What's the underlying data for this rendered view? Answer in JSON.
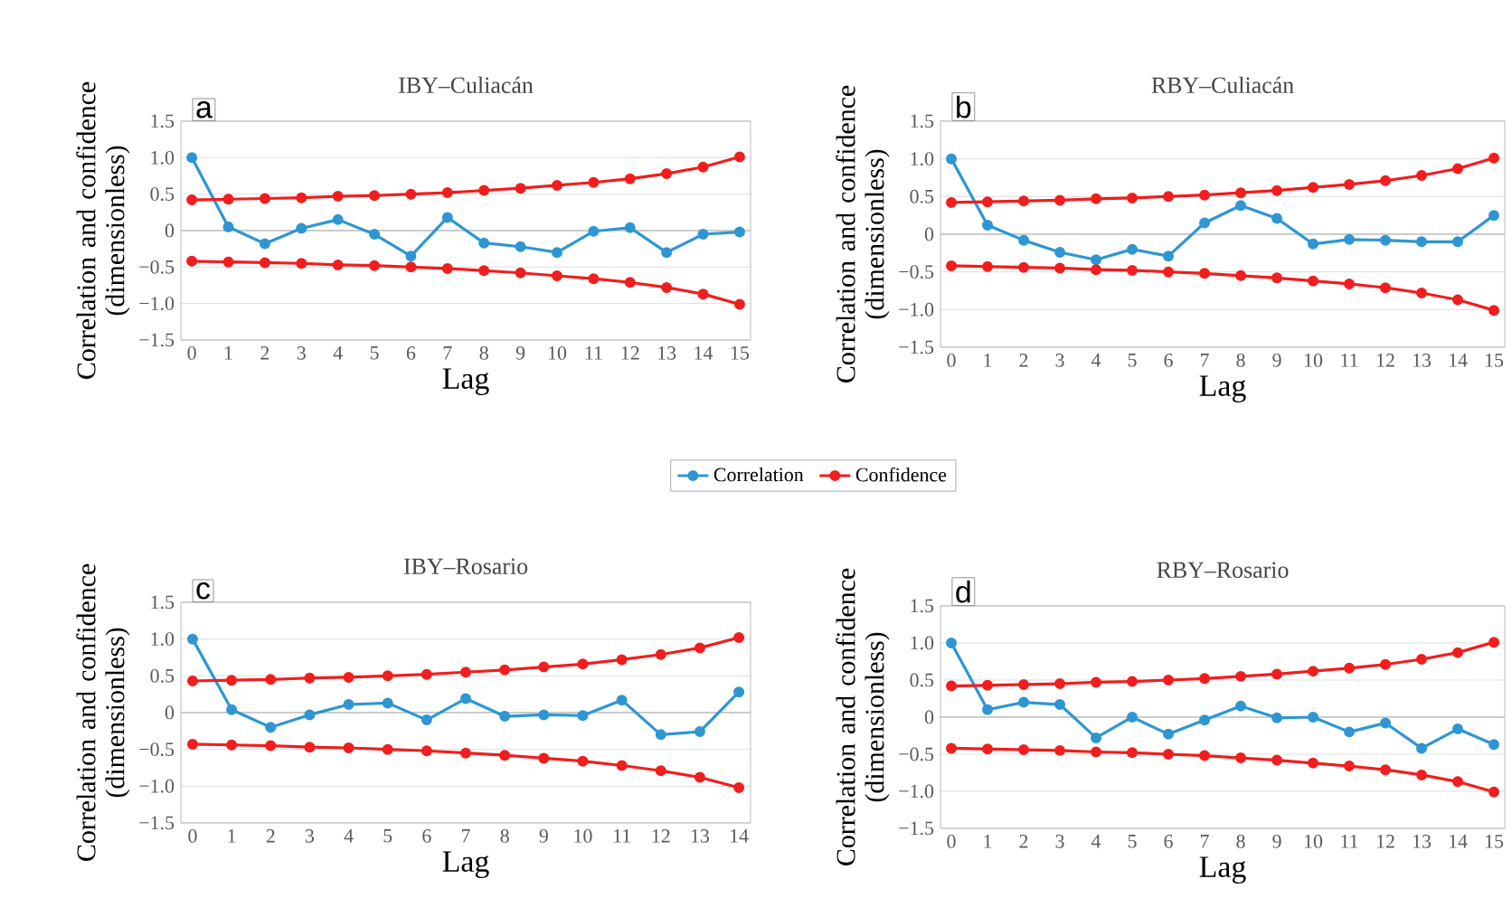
{
  "chart_data": [
    {
      "type": "line",
      "title": "IBY–Culiacán",
      "xlabel": "Lag",
      "ylabel": "Correlation and confidence (dimensionless)",
      "annotations": [
        "a"
      ],
      "categories": [
        "0",
        "1",
        "2",
        "3",
        "4",
        "5",
        "6",
        "7",
        "8",
        "9",
        "10",
        "11",
        "12",
        "13",
        "14",
        "15"
      ],
      "series": [
        {
          "name": "Correlation",
          "color": "#2e96d2",
          "values": [
            1.0,
            0.05,
            -0.18,
            0.03,
            0.15,
            -0.05,
            -0.35,
            0.18,
            -0.17,
            -0.22,
            -0.3,
            -0.01,
            0.04,
            -0.3,
            -0.05,
            -0.02
          ]
        },
        {
          "name": "Confidence",
          "color": "#f01e1e",
          "values": [
            0.42,
            0.43,
            0.44,
            0.45,
            0.47,
            0.48,
            0.5,
            0.52,
            0.55,
            0.58,
            0.62,
            0.66,
            0.71,
            0.78,
            0.87,
            1.01
          ]
        },
        {
          "color": "#f01e1e",
          "values": [
            -0.42,
            -0.43,
            -0.44,
            -0.45,
            -0.47,
            -0.48,
            -0.5,
            -0.52,
            -0.55,
            -0.58,
            -0.62,
            -0.66,
            -0.71,
            -0.78,
            -0.87,
            -1.01
          ]
        }
      ],
      "ylim": [
        -1.5,
        1.5
      ],
      "yticks": [
        {
          "value": -1.5,
          "label": "−1.5"
        },
        {
          "value": -1,
          "label": "−1.0"
        },
        {
          "value": -0.5,
          "label": "−0.5"
        },
        0,
        {
          "value": 0.5,
          "label": "0.5"
        },
        {
          "value": 1,
          "label": "1.0"
        },
        {
          "value": 1.5,
          "label": "1.5"
        }
      ],
      "grid": "y",
      "marker": "circle",
      "legend": "bottom"
    },
    {
      "type": "line",
      "title": "RBY–Culiacán",
      "xlabel": "Lag",
      "ylabel": "Correlation and confidence (dimensionless)",
      "annotations": [
        "b"
      ],
      "categories": [
        "0",
        "1",
        "2",
        "3",
        "4",
        "5",
        "6",
        "7",
        "8",
        "9",
        "10",
        "11",
        "12",
        "13",
        "14",
        "15"
      ],
      "series": [
        {
          "color": "#2e96d2",
          "values": [
            1.0,
            0.12,
            -0.08,
            -0.24,
            -0.34,
            -0.2,
            -0.29,
            0.15,
            0.38,
            0.21,
            -0.13,
            -0.07,
            -0.08,
            -0.1,
            -0.1,
            0.25
          ]
        },
        {
          "color": "#f01e1e",
          "values": [
            0.42,
            0.43,
            0.44,
            0.45,
            0.47,
            0.48,
            0.5,
            0.52,
            0.55,
            0.58,
            0.62,
            0.66,
            0.71,
            0.78,
            0.87,
            1.01
          ]
        },
        {
          "color": "#f01e1e",
          "values": [
            -0.42,
            -0.43,
            -0.44,
            -0.45,
            -0.47,
            -0.48,
            -0.5,
            -0.52,
            -0.55,
            -0.58,
            -0.62,
            -0.66,
            -0.71,
            -0.78,
            -0.87,
            -1.01
          ]
        }
      ],
      "ylim": [
        -1.5,
        1.5
      ],
      "yticks": [
        {
          "value": -1.5,
          "label": "−1.5"
        },
        {
          "value": -1,
          "label": "−1.0"
        },
        {
          "value": -0.5,
          "label": "−0.5"
        },
        0,
        {
          "value": 0.5,
          "label": "0.5"
        },
        {
          "value": 1,
          "label": "1.0"
        },
        {
          "value": 1.5,
          "label": "1.5"
        }
      ],
      "grid": "y",
      "marker": "circle"
    },
    {
      "type": "line",
      "title": "IBY–Rosario",
      "xlabel": "Lag",
      "ylabel": "Correlation and confidence (dimensionless)",
      "annotations": [
        "c"
      ],
      "categories": [
        "0",
        "1",
        "2",
        "3",
        "4",
        "5",
        "6",
        "7",
        "8",
        "9",
        "10",
        "11",
        "12",
        "13",
        "14"
      ],
      "series": [
        {
          "color": "#2e96d2",
          "values": [
            1.0,
            0.04,
            -0.2,
            -0.03,
            0.11,
            0.13,
            -0.1,
            0.19,
            -0.05,
            -0.03,
            -0.04,
            0.17,
            -0.3,
            -0.26,
            0.28
          ]
        },
        {
          "color": "#f01e1e",
          "values": [
            0.43,
            0.44,
            0.45,
            0.47,
            0.48,
            0.5,
            0.52,
            0.55,
            0.58,
            0.62,
            0.66,
            0.72,
            0.79,
            0.88,
            1.02
          ]
        },
        {
          "color": "#f01e1e",
          "values": [
            -0.43,
            -0.44,
            -0.45,
            -0.47,
            -0.48,
            -0.5,
            -0.52,
            -0.55,
            -0.58,
            -0.62,
            -0.66,
            -0.72,
            -0.79,
            -0.88,
            -1.02
          ]
        }
      ],
      "ylim": [
        -1.5,
        1.5
      ],
      "yticks": [
        {
          "value": -1.5,
          "label": "−1.5"
        },
        {
          "value": -1,
          "label": "−1.0"
        },
        {
          "value": -0.5,
          "label": "−0.5"
        },
        0,
        {
          "value": 0.5,
          "label": "0.5"
        },
        {
          "value": 1,
          "label": "1.0"
        },
        {
          "value": 1.5,
          "label": "1.5"
        }
      ],
      "grid": "y",
      "marker": "circle"
    },
    {
      "type": "line",
      "title": "RBY–Rosario",
      "xlabel": "Lag",
      "ylabel": "Correlation and confidence (dimensionless)",
      "annotations": [
        "d"
      ],
      "categories": [
        "0",
        "1",
        "2",
        "3",
        "4",
        "5",
        "6",
        "7",
        "8",
        "9",
        "10",
        "11",
        "12",
        "13",
        "14",
        "15"
      ],
      "series": [
        {
          "color": "#2e96d2",
          "values": [
            1.0,
            0.1,
            0.2,
            0.17,
            -0.28,
            0.0,
            -0.23,
            -0.04,
            0.15,
            -0.01,
            0.0,
            -0.2,
            -0.08,
            -0.42,
            -0.16,
            -0.37
          ]
        },
        {
          "color": "#f01e1e",
          "values": [
            0.42,
            0.43,
            0.44,
            0.45,
            0.47,
            0.48,
            0.5,
            0.52,
            0.55,
            0.58,
            0.62,
            0.66,
            0.71,
            0.78,
            0.87,
            1.01
          ]
        },
        {
          "color": "#f01e1e",
          "values": [
            -0.42,
            -0.43,
            -0.44,
            -0.45,
            -0.47,
            -0.48,
            -0.5,
            -0.52,
            -0.55,
            -0.58,
            -0.62,
            -0.66,
            -0.71,
            -0.78,
            -0.87,
            -1.01
          ]
        }
      ],
      "ylim": [
        -1.5,
        1.5
      ],
      "yticks": [
        {
          "value": -1.5,
          "label": "−1.5"
        },
        {
          "value": -1,
          "label": "−1.0"
        },
        {
          "value": -0.5,
          "label": "−0.5"
        },
        0,
        {
          "value": 0.5,
          "label": "0.5"
        },
        {
          "value": 1,
          "label": "1.0"
        },
        {
          "value": 1.5,
          "label": "1.5"
        }
      ],
      "grid": "y",
      "marker": "circle"
    }
  ]
}
